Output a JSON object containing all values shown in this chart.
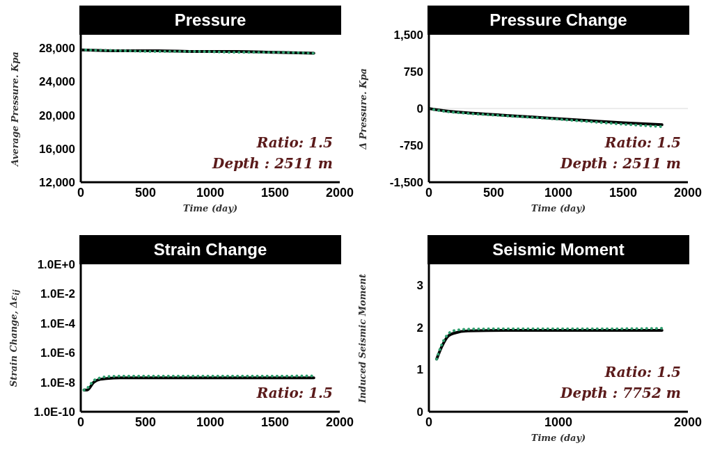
{
  "chart_data": [
    {
      "type": "line",
      "title": "Pressure",
      "xlabel": "Time (day)",
      "ylabel": "Average Pressure. Kpa",
      "xlim": [
        0,
        2000
      ],
      "xticks": [
        0,
        500,
        1000,
        1500,
        2000
      ],
      "ylim": [
        12000,
        29600
      ],
      "yticks": [
        {
          "value": 12000,
          "label": "12,000"
        },
        {
          "value": 16000,
          "label": "16,000"
        },
        {
          "value": 20000,
          "label": "20,000"
        },
        {
          "value": 24000,
          "label": "24,000"
        },
        {
          "value": 28000,
          "label": "28,000"
        }
      ],
      "marker": "none",
      "annotations": [
        "Ratio: 1.5",
        "Depth : 2511 m"
      ],
      "series": [
        {
          "color": "#000000",
          "line_style": "solid",
          "x": [
            0,
            300,
            600,
            900,
            1200,
            1500,
            1800
          ],
          "values": [
            27800,
            27700,
            27700,
            27600,
            27600,
            27500,
            27400
          ]
        },
        {
          "color": "#2e9e6e",
          "line_style": "dotted",
          "x": [
            0,
            300,
            600,
            900,
            1200,
            1500,
            1800
          ],
          "values": [
            27800,
            27700,
            27600,
            27600,
            27500,
            27500,
            27400
          ]
        }
      ]
    },
    {
      "type": "line",
      "title": "Pressure Change",
      "xlabel": "Time (day)",
      "ylabel": "Δ Pressure. Kpa",
      "xlim": [
        0,
        2000
      ],
      "xticks": [
        0,
        500,
        1000,
        1500,
        2000
      ],
      "ylim": [
        -1500,
        1500
      ],
      "yticks": [
        {
          "value": -1500,
          "label": "-1,500"
        },
        -750,
        0,
        750,
        {
          "value": 1500,
          "label": "1,500"
        }
      ],
      "marker": "none",
      "annotations": [
        "Ratio: 1.5",
        "Depth : 2511 m"
      ],
      "ref_lines": [
        {
          "axis": "y",
          "value": 0,
          "color": "#d9d9d9"
        }
      ],
      "series": [
        {
          "color": "#000000",
          "line_style": "solid",
          "x": [
            0,
            100,
            300,
            600,
            900,
            1200,
            1500,
            1800
          ],
          "values": [
            0,
            -40,
            -90,
            -140,
            -190,
            -240,
            -290,
            -330
          ]
        },
        {
          "color": "#2e9e6e",
          "line_style": "dotted",
          "x": [
            0,
            100,
            300,
            600,
            900,
            1200,
            1500,
            1800
          ],
          "values": [
            0,
            -50,
            -100,
            -150,
            -200,
            -260,
            -320,
            -370
          ]
        }
      ]
    },
    {
      "type": "line",
      "title": "Strain Change",
      "ylabel": "Strain Change, Δε$_{ij}$",
      "xlim": [
        0,
        2000
      ],
      "xticks": [
        0,
        500,
        1000,
        1500,
        2000
      ],
      "log": "y",
      "ylim": [
        1e-10,
        1
      ],
      "yticks": [
        {
          "value": 1e-10,
          "label": "1.0E-10"
        },
        {
          "value": 1e-08,
          "label": "1.0E-8"
        },
        {
          "value": 1e-06,
          "label": "1.0E-6"
        },
        {
          "value": 0.0001,
          "label": "1.0E-4"
        },
        {
          "value": 0.01,
          "label": "1.0E-2"
        },
        {
          "value": 1,
          "label": "1.0E+0"
        }
      ],
      "marker": "none",
      "annotations": [
        "Ratio: 1.5"
      ],
      "series": [
        {
          "color": "#000000",
          "line_style": "solid",
          "x": [
            25,
            50,
            100,
            150,
            200,
            300,
            600,
            1000,
            1400,
            1800
          ],
          "values": [
            3e-09,
            3e-09,
            1e-08,
            1.6e-08,
            1.8e-08,
            2e-08,
            2e-08,
            2e-08,
            2e-08,
            2e-08
          ]
        },
        {
          "color": "#2e9e6e",
          "line_style": "dotted",
          "x": [
            25,
            50,
            100,
            150,
            200,
            300,
            600,
            1000,
            1400,
            1800
          ],
          "values": [
            3e-09,
            4e-09,
            1.3e-08,
            2e-08,
            2.4e-08,
            2.6e-08,
            2.6e-08,
            2.6e-08,
            2.6e-08,
            2.7e-08
          ]
        }
      ]
    },
    {
      "type": "line",
      "title": "Seismic Moment",
      "xlabel": "Time (day)",
      "ylabel": "Induced Seismic Moment",
      "xlim": [
        0,
        2000
      ],
      "xticks": [
        0,
        1000,
        2000
      ],
      "ylim": [
        0,
        3.5
      ],
      "yticks": [
        0,
        1,
        2,
        3
      ],
      "marker": "none",
      "annotations": [
        "Ratio: 1.5",
        "Depth : 7752 m"
      ],
      "series": [
        {
          "color": "#000000",
          "line_style": "solid",
          "x": [
            60,
            100,
            150,
            200,
            300,
            600,
            1000,
            1400,
            1800
          ],
          "values": [
            1.25,
            1.55,
            1.8,
            1.87,
            1.92,
            1.93,
            1.93,
            1.93,
            1.93
          ]
        },
        {
          "color": "#2e9e6e",
          "line_style": "dotted",
          "x": [
            60,
            100,
            150,
            200,
            300,
            600,
            1000,
            1400,
            1800
          ],
          "values": [
            1.25,
            1.6,
            1.85,
            1.93,
            1.96,
            1.97,
            1.97,
            1.97,
            1.98
          ]
        }
      ]
    }
  ]
}
